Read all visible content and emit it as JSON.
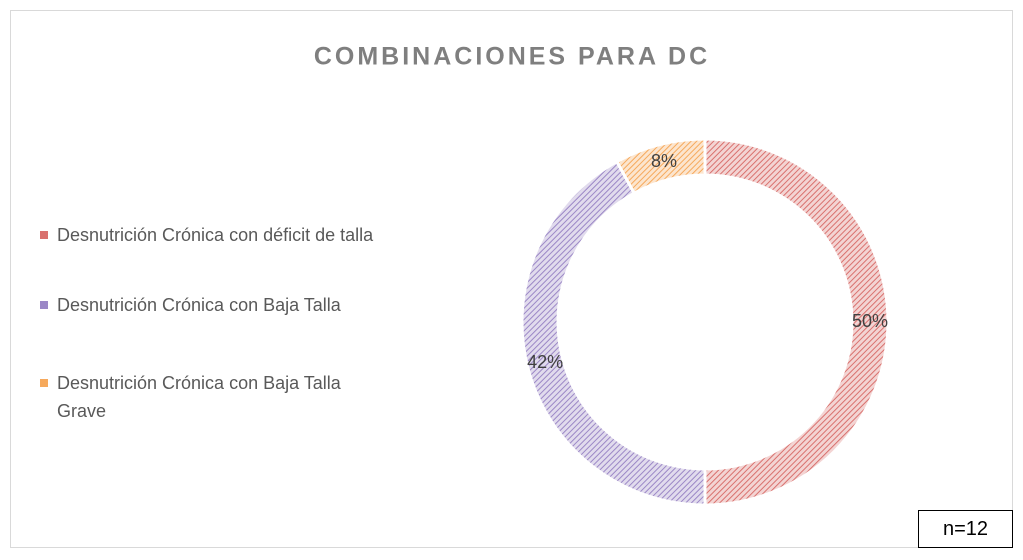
{
  "chart_data": {
    "type": "donut",
    "title": "COMBINACIONES PARA DC",
    "categories": [
      "Desnutrición Crónica con déficit de talla",
      "Desnutrición Crónica con Baja Talla",
      "Desnutrición Crónica con Baja Talla Grave"
    ],
    "values": [
      50,
      42,
      8
    ],
    "value_labels": [
      "50%",
      "42%",
      "8%"
    ],
    "colors": [
      "#d9716e",
      "#9b87c6",
      "#f6a95c"
    ],
    "legend": "left",
    "annotation": "n=12"
  }
}
